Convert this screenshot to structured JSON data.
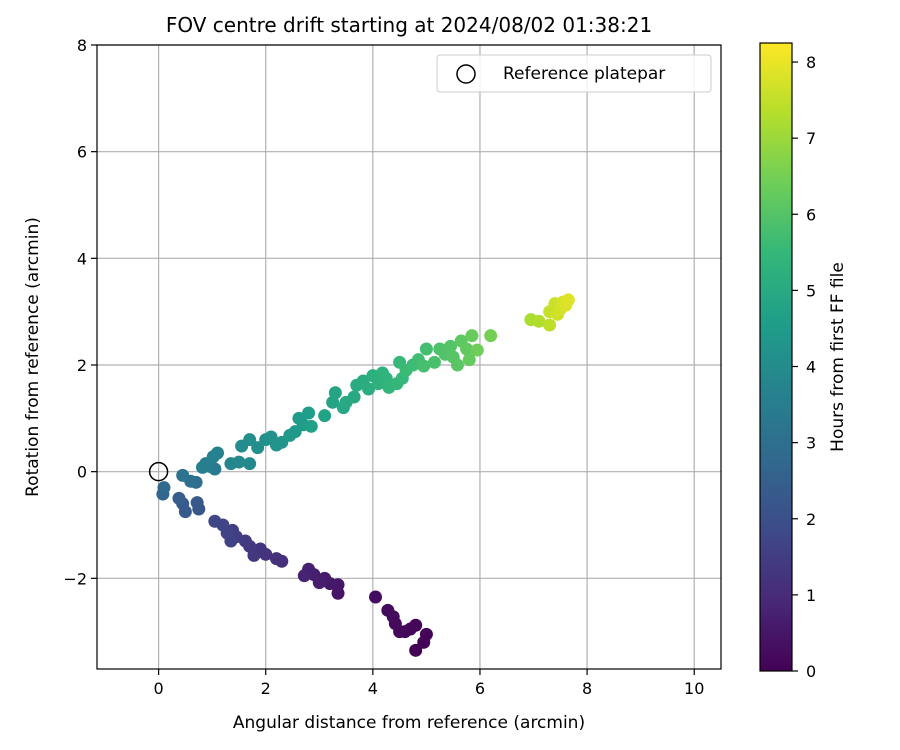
{
  "chart_data": {
    "type": "scatter",
    "title": "FOV centre drift starting at 2024/08/02 01:38:21",
    "xlabel": "Angular distance from reference (arcmin)",
    "ylabel": "Rotation from reference (arcmin)",
    "xlim": [
      -1.15,
      10.5
    ],
    "ylim": [
      -3.7,
      8
    ],
    "xticks": [
      "0",
      "2",
      "4",
      "6",
      "8",
      "10"
    ],
    "xtick_values": [
      0,
      2,
      4,
      6,
      8,
      10
    ],
    "yticks": [
      "−2",
      "0",
      "2",
      "4",
      "6",
      "8"
    ],
    "ytick_values": [
      -2,
      0,
      2,
      4,
      6,
      8
    ],
    "grid": true,
    "legend": {
      "position": "top-right",
      "entries": [
        "Reference platepar"
      ]
    },
    "reference_point": {
      "x": 0,
      "y": 0
    },
    "colorbar": {
      "label": "Hours from first FF file",
      "range": [
        0,
        8.25
      ],
      "ticks": [
        "0",
        "1",
        "2",
        "3",
        "4",
        "5",
        "6",
        "7",
        "8"
      ],
      "tick_values": [
        0,
        1,
        2,
        3,
        4,
        5,
        6,
        7,
        8
      ],
      "colormap": "viridis"
    },
    "points": [
      [
        4.8,
        -3.35,
        0.03
      ],
      [
        4.95,
        -3.2,
        0.05
      ],
      [
        5.0,
        -3.05,
        0.08
      ],
      [
        4.8,
        -2.88,
        0.1
      ],
      [
        4.7,
        -2.95,
        0.13
      ],
      [
        4.6,
        -3.0,
        0.15
      ],
      [
        4.5,
        -3.0,
        0.18
      ],
      [
        4.42,
        -2.85,
        0.2
      ],
      [
        4.38,
        -2.72,
        0.23
      ],
      [
        4.28,
        -2.6,
        0.25
      ],
      [
        4.05,
        -2.35,
        0.28
      ],
      [
        3.35,
        -2.28,
        0.45
      ],
      [
        3.35,
        -2.12,
        0.5
      ],
      [
        3.2,
        -2.1,
        0.55
      ],
      [
        3.1,
        -2.0,
        0.6
      ],
      [
        3.0,
        -2.08,
        0.65
      ],
      [
        2.9,
        -1.93,
        0.7
      ],
      [
        2.8,
        -1.83,
        0.75
      ],
      [
        2.72,
        -1.95,
        0.8
      ],
      [
        2.3,
        -1.68,
        1.1
      ],
      [
        2.2,
        -1.63,
        1.15
      ],
      [
        2.0,
        -1.55,
        1.2
      ],
      [
        1.9,
        -1.45,
        1.25
      ],
      [
        1.78,
        -1.57,
        1.3
      ],
      [
        1.7,
        -1.4,
        1.35
      ],
      [
        1.62,
        -1.3,
        1.4
      ],
      [
        1.45,
        -1.22,
        1.5
      ],
      [
        1.38,
        -1.1,
        1.55
      ],
      [
        1.35,
        -1.3,
        1.6
      ],
      [
        1.28,
        -1.15,
        1.65
      ],
      [
        1.2,
        -1.0,
        1.7
      ],
      [
        1.05,
        -0.93,
        1.75
      ],
      [
        0.75,
        -0.7,
        2.2
      ],
      [
        0.72,
        -0.58,
        2.25
      ],
      [
        0.5,
        -0.75,
        2.3
      ],
      [
        0.45,
        -0.6,
        2.35
      ],
      [
        0.38,
        -0.5,
        2.4
      ],
      [
        0.08,
        -0.42,
        2.7
      ],
      [
        0.1,
        -0.3,
        2.75
      ],
      [
        0.7,
        -0.2,
        3.0
      ],
      [
        0.6,
        -0.18,
        3.05
      ],
      [
        0.45,
        -0.07,
        3.1
      ],
      [
        1.05,
        0.05,
        3.4
      ],
      [
        0.95,
        0.1,
        3.45
      ],
      [
        0.88,
        0.15,
        3.5
      ],
      [
        0.82,
        0.08,
        3.55
      ],
      [
        1.02,
        0.28,
        3.6
      ],
      [
        1.1,
        0.35,
        3.65
      ],
      [
        1.35,
        0.15,
        3.8
      ],
      [
        1.5,
        0.18,
        3.85
      ],
      [
        1.7,
        0.15,
        3.9
      ],
      [
        1.55,
        0.48,
        4.0
      ],
      [
        1.7,
        0.6,
        4.05
      ],
      [
        1.85,
        0.45,
        4.1
      ],
      [
        2.0,
        0.6,
        4.15
      ],
      [
        2.1,
        0.65,
        4.2
      ],
      [
        2.2,
        0.5,
        4.25
      ],
      [
        2.3,
        0.55,
        4.3
      ],
      [
        2.45,
        0.68,
        4.4
      ],
      [
        2.55,
        0.75,
        4.45
      ],
      [
        2.62,
        1.0,
        4.5
      ],
      [
        2.7,
        0.88,
        4.55
      ],
      [
        2.8,
        1.1,
        4.6
      ],
      [
        2.85,
        0.85,
        4.65
      ],
      [
        3.1,
        1.05,
        4.75
      ],
      [
        3.25,
        1.3,
        4.8
      ],
      [
        3.3,
        1.48,
        4.85
      ],
      [
        3.45,
        1.2,
        4.9
      ],
      [
        3.5,
        1.3,
        4.95
      ],
      [
        3.65,
        1.4,
        5.0
      ],
      [
        3.7,
        1.62,
        5.05
      ],
      [
        3.82,
        1.7,
        5.1
      ],
      [
        3.92,
        1.55,
        5.15
      ],
      [
        4.0,
        1.8,
        5.2
      ],
      [
        4.1,
        1.65,
        5.25
      ],
      [
        4.18,
        1.85,
        5.3
      ],
      [
        4.25,
        1.75,
        5.35
      ],
      [
        4.3,
        1.58,
        5.4
      ],
      [
        4.45,
        1.65,
        5.45
      ],
      [
        4.55,
        1.75,
        5.5
      ],
      [
        4.5,
        2.05,
        5.55
      ],
      [
        4.62,
        1.9,
        5.6
      ],
      [
        4.75,
        2.0,
        5.65
      ],
      [
        4.85,
        2.1,
        5.7
      ],
      [
        5.0,
        2.3,
        5.75
      ],
      [
        4.95,
        1.98,
        5.8
      ],
      [
        5.15,
        2.05,
        5.85
      ],
      [
        5.25,
        2.3,
        5.9
      ],
      [
        5.35,
        2.2,
        5.95
      ],
      [
        5.45,
        2.35,
        6.0
      ],
      [
        5.5,
        2.15,
        6.05
      ],
      [
        5.58,
        2.0,
        6.1
      ],
      [
        5.65,
        2.45,
        6.15
      ],
      [
        5.75,
        2.3,
        6.2
      ],
      [
        5.8,
        2.1,
        6.25
      ],
      [
        5.85,
        2.55,
        6.3
      ],
      [
        5.95,
        2.28,
        6.4
      ],
      [
        6.2,
        2.55,
        6.5
      ],
      [
        6.95,
        2.85,
        7.2
      ],
      [
        7.1,
        2.82,
        7.3
      ],
      [
        7.3,
        2.75,
        7.45
      ],
      [
        7.3,
        3.0,
        7.55
      ],
      [
        7.4,
        3.15,
        7.6
      ],
      [
        7.45,
        2.95,
        7.65
      ],
      [
        7.5,
        3.05,
        7.7
      ],
      [
        7.55,
        3.18,
        7.75
      ],
      [
        7.6,
        3.12,
        7.8
      ],
      [
        7.65,
        3.22,
        7.85
      ]
    ]
  }
}
